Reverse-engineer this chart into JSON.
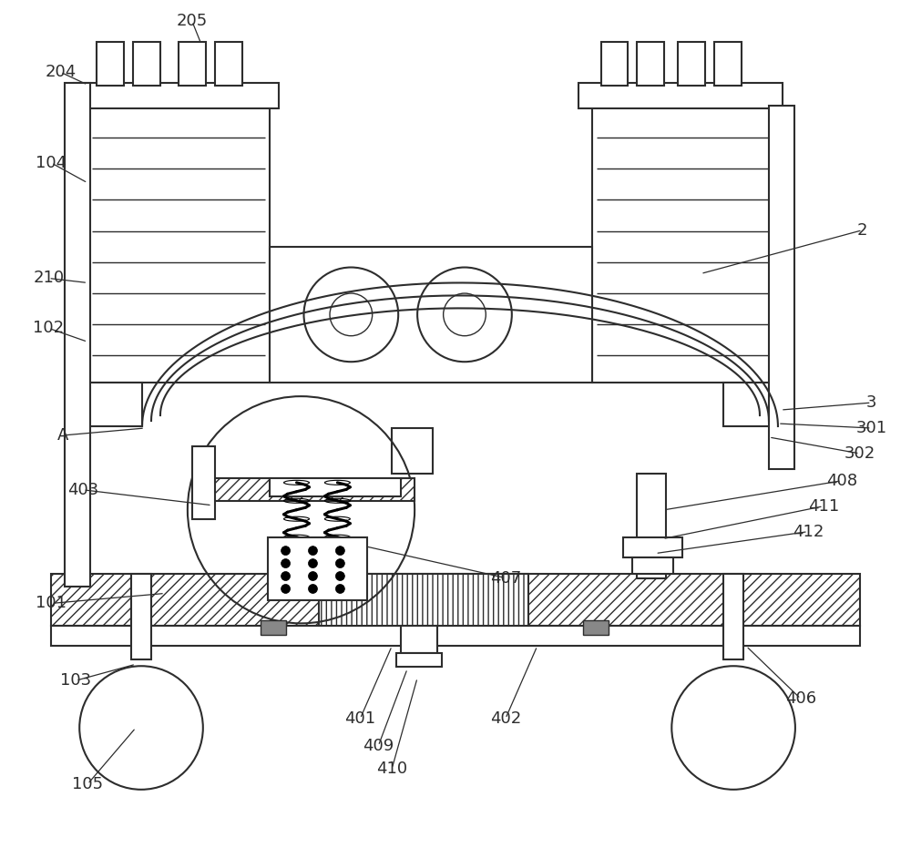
{
  "bg_color": "#ffffff",
  "lc": "#2d2d2d",
  "lw": 1.5,
  "tlw": 1.0
}
